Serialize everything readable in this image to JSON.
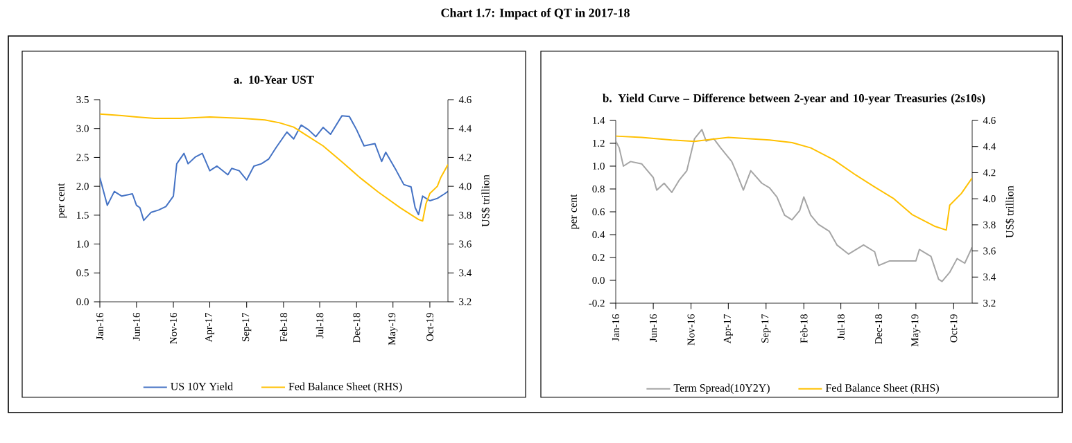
{
  "chart_data": [
    {
      "type": "line",
      "title": "a. 10-Year UST",
      "ylabel": "per cent",
      "y2label": "US$ trillion",
      "legend": "bottom",
      "annotations": [
        "Chart 1.7: Impact of QT in 2017-18"
      ],
      "xlim": [
        "2016-01-01",
        "2019-12-15"
      ],
      "xticks": [
        {
          "value": "2016-01-01",
          "label": "Jan-16"
        },
        {
          "value": "2016-06-01",
          "label": "Jun-16"
        },
        {
          "value": "2016-11-01",
          "label": "Nov-16"
        },
        {
          "value": "2017-04-01",
          "label": "Apr-17"
        },
        {
          "value": "2017-09-01",
          "label": "Sep-17"
        },
        {
          "value": "2018-02-01",
          "label": "Feb-18"
        },
        {
          "value": "2018-07-01",
          "label": "Jul-18"
        },
        {
          "value": "2018-12-01",
          "label": "Dec-18"
        },
        {
          "value": "2019-05-01",
          "label": "May-19"
        },
        {
          "value": "2019-10-01",
          "label": "Oct-19"
        }
      ],
      "ylim": [
        0,
        3.5
      ],
      "yticks": [
        {
          "value": 0,
          "label": "0.0"
        },
        0.5,
        {
          "value": 1,
          "label": "1.0"
        },
        1.5,
        {
          "value": 2,
          "label": "2.0"
        },
        2.5,
        {
          "value": 3,
          "label": "3.0"
        },
        3.5
      ],
      "y2lim": [
        3.2,
        4.6
      ],
      "y2ticks": [
        3.2,
        3.4,
        3.6,
        3.8,
        {
          "value": 4,
          "label": "4.0"
        },
        4.2,
        4.4,
        4.6
      ],
      "series": [
        {
          "name": "US 10Y Yield",
          "color": "#4472c4",
          "x": [
            "2016-01-01",
            "2016-02-01",
            "2016-03-01",
            "2016-04-01",
            "2016-05-15",
            "2016-06-01",
            "2016-06-15",
            "2016-07-01",
            "2016-08-01",
            "2016-09-01",
            "2016-10-01",
            "2016-11-01",
            "2016-11-15",
            "2016-12-15",
            "2017-01-01",
            "2017-02-01",
            "2017-03-01",
            "2017-04-01",
            "2017-05-01",
            "2017-06-15",
            "2017-07-01",
            "2017-08-01",
            "2017-09-01",
            "2017-10-01",
            "2017-11-01",
            "2017-12-01",
            "2018-01-01",
            "2018-02-15",
            "2018-03-15",
            "2018-04-15",
            "2018-05-15",
            "2018-06-15",
            "2018-07-15",
            "2018-08-15",
            "2018-10-01",
            "2018-11-01",
            "2018-12-01",
            "2019-01-01",
            "2019-02-15",
            "2019-03-15",
            "2019-04-01",
            "2019-05-15",
            "2019-06-15",
            "2019-07-15",
            "2019-08-01",
            "2019-08-15",
            "2019-09-01",
            "2019-10-01",
            "2019-11-01",
            "2019-12-01",
            "2019-12-15"
          ],
          "values": [
            2.15,
            1.67,
            1.91,
            1.83,
            1.87,
            1.67,
            1.63,
            1.41,
            1.55,
            1.59,
            1.65,
            1.83,
            2.39,
            2.57,
            2.39,
            2.51,
            2.57,
            2.27,
            2.35,
            2.2,
            2.31,
            2.27,
            2.11,
            2.35,
            2.39,
            2.47,
            2.67,
            2.94,
            2.82,
            3.06,
            2.98,
            2.86,
            3.02,
            2.9,
            3.22,
            3.21,
            2.98,
            2.7,
            2.74,
            2.43,
            2.59,
            2.27,
            2.03,
            1.99,
            1.63,
            1.51,
            1.83,
            1.75,
            1.79,
            1.87,
            1.91
          ]
        },
        {
          "name": "Fed Balance Sheet (RHS)",
          "color": "#ffc000",
          "axis": "y2",
          "x": [
            "2016-01-01",
            "2016-04-01",
            "2016-06-01",
            "2016-08-15",
            "2016-12-01",
            "2017-04-01",
            "2017-08-15",
            "2017-11-15",
            "2018-01-15",
            "2018-03-15",
            "2018-05-01",
            "2018-07-15",
            "2018-10-01",
            "2018-12-15",
            "2019-03-01",
            "2019-06-01",
            "2019-08-15",
            "2019-09-01",
            "2019-09-15",
            "2019-10-01",
            "2019-11-01",
            "2019-11-15",
            "2019-12-15"
          ],
          "values": [
            4.5,
            4.49,
            4.48,
            4.47,
            4.47,
            4.48,
            4.47,
            4.46,
            4.44,
            4.41,
            4.36,
            4.28,
            4.17,
            4.06,
            3.96,
            3.85,
            3.77,
            3.76,
            3.88,
            3.95,
            4.0,
            4.06,
            4.15
          ]
        }
      ]
    },
    {
      "type": "line",
      "title": "b. Yield Curve – Difference between 2-year and 10-year Treasuries (2s10s)",
      "ylabel": "per cent",
      "y2label": "US$ trillion",
      "legend": "bottom",
      "xlim": [
        "2016-01-01",
        "2019-12-15"
      ],
      "xticks": [
        {
          "value": "2016-01-01",
          "label": "Jan-16"
        },
        {
          "value": "2016-06-01",
          "label": "Jun-16"
        },
        {
          "value": "2016-11-01",
          "label": "Nov-16"
        },
        {
          "value": "2017-04-01",
          "label": "Apr-17"
        },
        {
          "value": "2017-09-01",
          "label": "Sep-17"
        },
        {
          "value": "2018-02-01",
          "label": "Feb-18"
        },
        {
          "value": "2018-07-01",
          "label": "Jul-18"
        },
        {
          "value": "2018-12-01",
          "label": "Dec-18"
        },
        {
          "value": "2019-05-01",
          "label": "May-19"
        },
        {
          "value": "2019-10-01",
          "label": "Oct-19"
        }
      ],
      "ylim": [
        -0.2,
        1.4
      ],
      "yticks": [
        -0.2,
        {
          "value": 0,
          "label": "0.0"
        },
        0.2,
        0.4,
        0.6,
        0.8,
        {
          "value": 1,
          "label": "1.0"
        },
        1.2,
        1.4
      ],
      "y2lim": [
        3.2,
        4.6
      ],
      "y2ticks": [
        3.2,
        3.4,
        3.6,
        3.8,
        {
          "value": 4,
          "label": "4.0"
        },
        4.2,
        4.4,
        4.6
      ],
      "series": [
        {
          "name": "Term Spread(10Y2Y)",
          "color": "#a5a5a5",
          "x": [
            "2016-01-01",
            "2016-01-15",
            "2016-02-01",
            "2016-03-01",
            "2016-04-15",
            "2016-06-01",
            "2016-06-15",
            "2016-07-15",
            "2016-08-15",
            "2016-09-15",
            "2016-10-15",
            "2016-11-15",
            "2016-12-15",
            "2017-01-01",
            "2017-02-01",
            "2017-03-01",
            "2017-04-15",
            "2017-05-01",
            "2017-06-01",
            "2017-07-01",
            "2017-08-15",
            "2017-09-15",
            "2017-10-15",
            "2017-11-15",
            "2017-12-15",
            "2018-01-15",
            "2018-02-01",
            "2018-03-01",
            "2018-04-01",
            "2018-05-15",
            "2018-06-15",
            "2018-08-01",
            "2018-09-01",
            "2018-10-01",
            "2018-11-15",
            "2018-12-01",
            "2019-01-15",
            "2019-03-15",
            "2019-05-01",
            "2019-05-15",
            "2019-07-01",
            "2019-08-01",
            "2019-08-15",
            "2019-09-15",
            "2019-10-15",
            "2019-11-15",
            "2019-12-15"
          ],
          "values": [
            1.22,
            1.16,
            1.0,
            1.04,
            1.02,
            0.9,
            0.79,
            0.85,
            0.77,
            0.88,
            0.96,
            1.24,
            1.32,
            1.22,
            1.24,
            1.16,
            1.04,
            0.96,
            0.79,
            0.96,
            0.85,
            0.81,
            0.73,
            0.57,
            0.53,
            0.61,
            0.73,
            0.57,
            0.49,
            0.43,
            0.31,
            0.23,
            0.27,
            0.31,
            0.25,
            0.13,
            0.17,
            0.17,
            0.17,
            0.27,
            0.21,
            0.01,
            -0.01,
            0.07,
            0.19,
            0.15,
            0.29
          ]
        },
        {
          "name": "Fed Balance Sheet (RHS)",
          "color": "#ffc000",
          "axis": "y2",
          "x": [
            "2016-01-01",
            "2016-04-15",
            "2016-08-15",
            "2016-11-15",
            "2017-04-01",
            "2017-09-15",
            "2017-12-15",
            "2018-03-01",
            "2018-06-01",
            "2018-09-01",
            "2018-11-15",
            "2019-02-01",
            "2019-04-15",
            "2019-07-15",
            "2019-09-01",
            "2019-09-15",
            "2019-11-01",
            "2019-12-15"
          ],
          "values": [
            4.48,
            4.47,
            4.45,
            4.44,
            4.47,
            4.45,
            4.43,
            4.39,
            4.3,
            4.18,
            4.09,
            4.0,
            3.88,
            3.79,
            3.76,
            3.95,
            4.04,
            4.16
          ]
        }
      ]
    }
  ]
}
